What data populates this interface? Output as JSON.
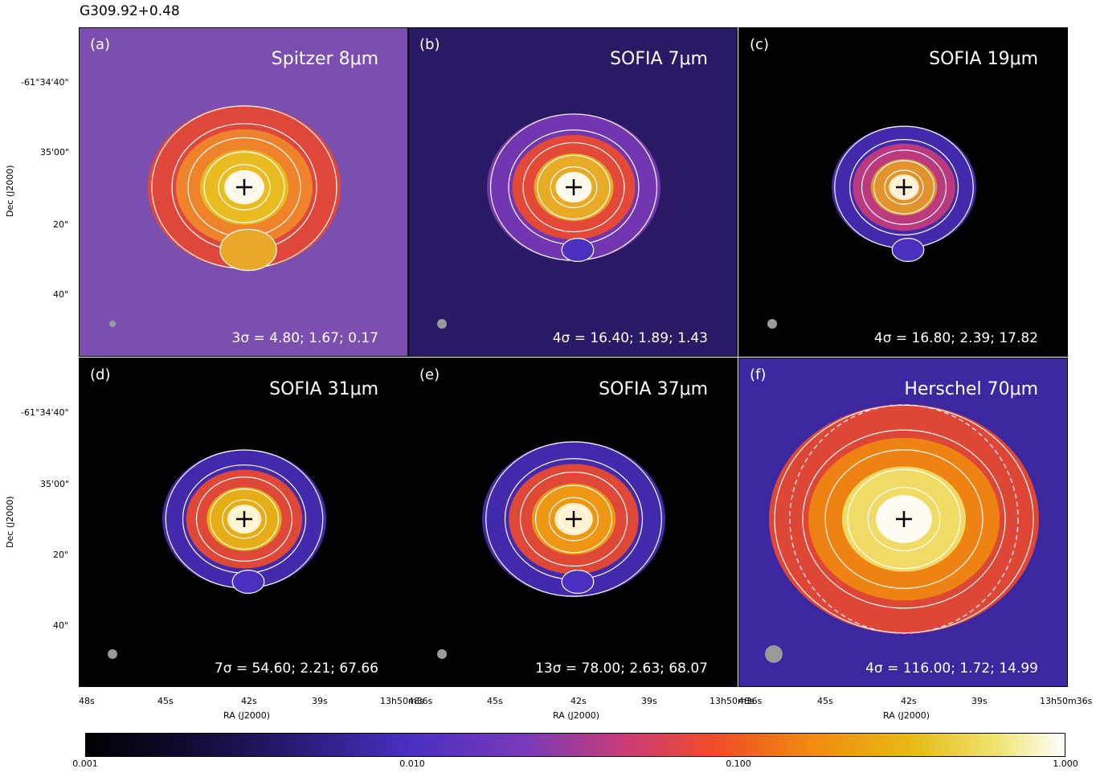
{
  "figure_title": "G309.92+0.48",
  "panels": [
    {
      "label": "(a)",
      "instrument": "Spitzer 8μm",
      "contours": "3σ = 4.80;  1.67;  0.17",
      "bg": "#7a4fb0",
      "core_colors": [
        "#ffffff",
        "#e8c320",
        "#f0892a",
        "#e9462e"
      ]
    },
    {
      "label": "(b)",
      "instrument": "SOFIA 7μm",
      "contours": "4σ = 16.40;  1.89;  1.43",
      "bg": "#2a1a66",
      "core_colors": [
        "#ffffff",
        "#e8b624",
        "#f14a2a",
        "#7a3ab8"
      ]
    },
    {
      "label": "(c)",
      "instrument": "SOFIA 19μm",
      "contours": "4σ = 16.80;  2.39;  17.82",
      "bg": "#000000",
      "core_colors": [
        "#fffbe0",
        "#e79d25",
        "#c83c78",
        "#4a2fc0"
      ]
    },
    {
      "label": "(d)",
      "instrument": "SOFIA 31μm",
      "contours": "7σ = 54.60;  2.21;  67.66",
      "bg": "#000000",
      "core_colors": [
        "#fffbe0",
        "#e7b812",
        "#f14a2a",
        "#4a2fc0"
      ]
    },
    {
      "label": "(e)",
      "instrument": "SOFIA 37μm",
      "contours": "13σ = 78.00;  2.63;  68.07",
      "bg": "#000000",
      "core_colors": [
        "#fffbe0",
        "#f0a010",
        "#f14a2a",
        "#4a2fc0"
      ]
    },
    {
      "label": "(f)",
      "instrument": "Herschel 70μm",
      "contours": "4σ = 116.00;  1.72;  14.99",
      "bg": "#3b28a0",
      "core_colors": [
        "#ffffff",
        "#efe470",
        "#f08a10",
        "#f14a2a"
      ]
    }
  ],
  "y_axis": {
    "label": "Dec (J2000)",
    "ticks": [
      "-61°34'40\"",
      "35'00\"",
      "20\"",
      "40\""
    ]
  },
  "x_axis": {
    "label": "RA (J2000)",
    "ticks": [
      "48s",
      "45s",
      "42s",
      "39s",
      "13h50m36s"
    ]
  },
  "colorbar": {
    "ticks": [
      "0.001",
      "0.010",
      "0.100",
      "1.000"
    ],
    "scale": "log"
  }
}
